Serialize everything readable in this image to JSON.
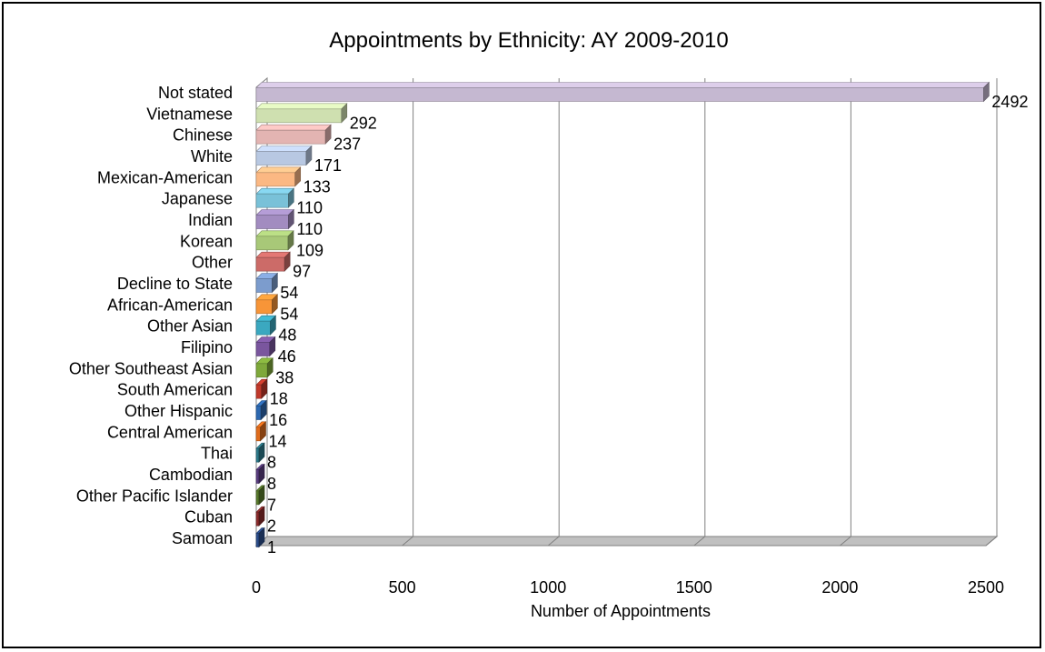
{
  "chart_data": {
    "type": "bar",
    "orientation": "horizontal",
    "title": "Appointments by Ethnicity: AY 2009-2010",
    "xlabel": "Number of Appointments",
    "ylabel": "",
    "xlim": [
      0,
      2500
    ],
    "x_ticks": [
      "0",
      "500",
      "1000",
      "1500",
      "2000",
      "2500"
    ],
    "grid": "vertical major gridlines",
    "legend": "none",
    "categories": [
      "Not stated",
      "Vietnamese",
      "Chinese",
      "White",
      "Mexican-American",
      "Japanese",
      "Indian",
      "Korean",
      "Other",
      "Decline to State",
      "African-American",
      "Other Asian",
      "Filipino",
      "Other Southeast Asian",
      "South American",
      "Other Hispanic",
      "Central American",
      "Thai",
      "Cambodian",
      "Other Pacific Islander",
      "Cuban",
      "Samoan"
    ],
    "values": [
      2492,
      292,
      237,
      171,
      133,
      110,
      110,
      109,
      97,
      54,
      54,
      48,
      46,
      38,
      18,
      16,
      14,
      8,
      8,
      7,
      2,
      1
    ],
    "colors": [
      "#c5b8d1",
      "#cfe0b0",
      "#e3b4b2",
      "#b8c8e2",
      "#fbb883",
      "#79c1d8",
      "#a28cc0",
      "#a8c878",
      "#cc6b68",
      "#7c9ccd",
      "#f79538",
      "#3ba8c0",
      "#7a569e",
      "#7ea83b",
      "#c0392b",
      "#2d68b0",
      "#e06c1c",
      "#2d7a8a",
      "#5a3d80",
      "#597a2c",
      "#8c2c2c",
      "#2c4e8c"
    ]
  }
}
